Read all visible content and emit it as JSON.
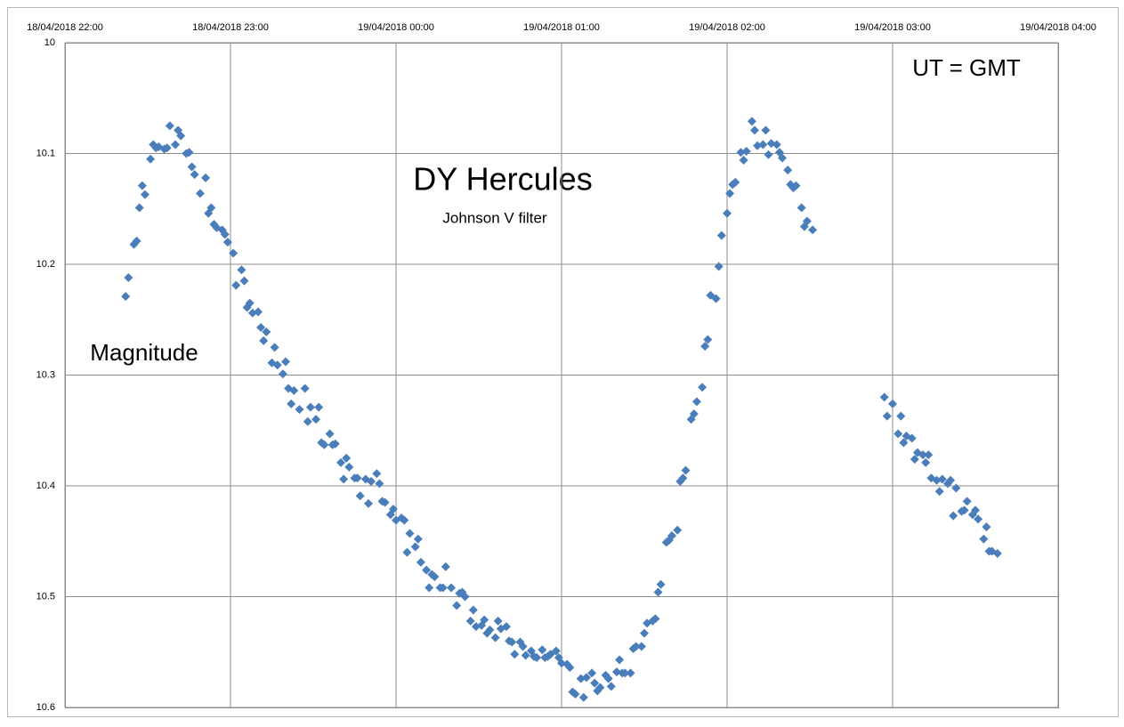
{
  "chart_data": {
    "type": "scatter",
    "title": "DY Hercules",
    "subtitle": "Johnson V filter",
    "y_label": "Magnitude",
    "annotation": "UT = GMT",
    "color": "#4a7ebb",
    "xlim": [
      "18/04/2018 22:00",
      "19/04/2018 04:00"
    ],
    "xticks": [
      "18/04/2018 22:00",
      "18/04/2018 23:00",
      "19/04/2018 00:00",
      "19/04/2018 01:00",
      "19/04/2018 02:00",
      "19/04/2018 03:00",
      "19/04/2018 04:00"
    ],
    "x_axis_position": "top",
    "ylim": [
      10,
      10.6
    ],
    "yticks": [
      10,
      10.1,
      10.2,
      10.3,
      10.4,
      10.5,
      10.6
    ],
    "y_inverted": true,
    "grid": true,
    "x": [
      "18/04/2018 22:22",
      "18/04/2018 22:23",
      "18/04/2018 22:25",
      "18/04/2018 22:26",
      "18/04/2018 22:27",
      "18/04/2018 22:28",
      "18/04/2018 22:29",
      "18/04/2018 22:31",
      "18/04/2018 22:32",
      "18/04/2018 22:33",
      "18/04/2018 22:34",
      "18/04/2018 22:36",
      "18/04/2018 22:37",
      "18/04/2018 22:38",
      "18/04/2018 22:40",
      "18/04/2018 22:41",
      "18/04/2018 22:42",
      "18/04/2018 22:44",
      "18/04/2018 22:45",
      "18/04/2018 22:46",
      "18/04/2018 22:47",
      "18/04/2018 22:49",
      "18/04/2018 22:51",
      "18/04/2018 22:52",
      "18/04/2018 22:53",
      "18/04/2018 22:54",
      "18/04/2018 22:55",
      "18/04/2018 22:57",
      "18/04/2018 22:58",
      "18/04/2018 22:59",
      "18/04/2018 23:01",
      "18/04/2018 23:02",
      "18/04/2018 23:04",
      "18/04/2018 23:05",
      "18/04/2018 23:06",
      "18/04/2018 23:07",
      "18/04/2018 23:08",
      "18/04/2018 23:10",
      "18/04/2018 23:11",
      "18/04/2018 23:12",
      "18/04/2018 23:13",
      "18/04/2018 23:15",
      "18/04/2018 23:16",
      "18/04/2018 23:17",
      "18/04/2018 23:19",
      "18/04/2018 23:20",
      "18/04/2018 23:21",
      "18/04/2018 23:22",
      "18/04/2018 23:23",
      "18/04/2018 23:25",
      "18/04/2018 23:27",
      "18/04/2018 23:28",
      "18/04/2018 23:29",
      "18/04/2018 23:31",
      "18/04/2018 23:32",
      "18/04/2018 23:33",
      "18/04/2018 23:34",
      "18/04/2018 23:36",
      "18/04/2018 23:37",
      "18/04/2018 23:38",
      "18/04/2018 23:40",
      "18/04/2018 23:41",
      "18/04/2018 23:42",
      "18/04/2018 23:43",
      "18/04/2018 23:45",
      "18/04/2018 23:46",
      "18/04/2018 23:47",
      "18/04/2018 23:49",
      "18/04/2018 23:50",
      "18/04/2018 23:51",
      "18/04/2018 23:53",
      "18/04/2018 23:54",
      "18/04/2018 23:55",
      "18/04/2018 23:56",
      "18/04/2018 23:58",
      "18/04/2018 23:59",
      "19/04/2018 00:00",
      "19/04/2018 00:02",
      "19/04/2018 00:03",
      "19/04/2018 00:04",
      "19/04/2018 00:05",
      "19/04/2018 00:07",
      "19/04/2018 00:08",
      "19/04/2018 00:09",
      "19/04/2018 00:11",
      "19/04/2018 00:12",
      "19/04/2018 00:13",
      "19/04/2018 00:14",
      "19/04/2018 00:16",
      "19/04/2018 00:17",
      "19/04/2018 00:18",
      "19/04/2018 00:20",
      "19/04/2018 00:22",
      "19/04/2018 00:23",
      "19/04/2018 00:24",
      "19/04/2018 00:25",
      "19/04/2018 00:27",
      "19/04/2018 00:28",
      "19/04/2018 00:29",
      "19/04/2018 00:31",
      "19/04/2018 00:32",
      "19/04/2018 00:33",
      "19/04/2018 00:34",
      "19/04/2018 00:36",
      "19/04/2018 00:37",
      "19/04/2018 00:38",
      "19/04/2018 00:40",
      "19/04/2018 00:41",
      "19/04/2018 00:42",
      "19/04/2018 00:43",
      "19/04/2018 00:45",
      "19/04/2018 00:46",
      "19/04/2018 00:47",
      "19/04/2018 00:49",
      "19/04/2018 00:50",
      "19/04/2018 00:51",
      "19/04/2018 00:53",
      "19/04/2018 00:54",
      "19/04/2018 00:55",
      "19/04/2018 00:56",
      "19/04/2018 00:58",
      "19/04/2018 00:59",
      "19/04/2018 01:00",
      "19/04/2018 01:02",
      "19/04/2018 01:03",
      "19/04/2018 01:04",
      "19/04/2018 01:05",
      "19/04/2018 01:07",
      "19/04/2018 01:08",
      "19/04/2018 01:09",
      "19/04/2018 01:11",
      "19/04/2018 01:12",
      "19/04/2018 01:13",
      "19/04/2018 01:14",
      "19/04/2018 01:16",
      "19/04/2018 01:17",
      "19/04/2018 01:18",
      "19/04/2018 01:20",
      "19/04/2018 01:21",
      "19/04/2018 01:22",
      "19/04/2018 01:23",
      "19/04/2018 01:25",
      "19/04/2018 01:26",
      "19/04/2018 01:27",
      "19/04/2018 01:29",
      "19/04/2018 01:30",
      "19/04/2018 01:31",
      "19/04/2018 01:33",
      "19/04/2018 01:34",
      "19/04/2018 01:35",
      "19/04/2018 01:36",
      "19/04/2018 01:38",
      "19/04/2018 01:39",
      "19/04/2018 01:40",
      "19/04/2018 01:42",
      "19/04/2018 01:43",
      "19/04/2018 01:44",
      "19/04/2018 01:45",
      "19/04/2018 01:47",
      "19/04/2018 01:48",
      "19/04/2018 01:49",
      "19/04/2018 01:51",
      "19/04/2018 01:52",
      "19/04/2018 01:53",
      "19/04/2018 01:54",
      "19/04/2018 01:56",
      "19/04/2018 01:57",
      "19/04/2018 01:58",
      "19/04/2018 02:00",
      "19/04/2018 02:01",
      "19/04/2018 02:02",
      "19/04/2018 02:03",
      "19/04/2018 02:05",
      "19/04/2018 02:06",
      "19/04/2018 02:07",
      "19/04/2018 02:09",
      "19/04/2018 02:10",
      "19/04/2018 02:11",
      "19/04/2018 02:13",
      "19/04/2018 02:14",
      "19/04/2018 02:15",
      "19/04/2018 02:16",
      "19/04/2018 02:18",
      "19/04/2018 02:19",
      "19/04/2018 02:20",
      "19/04/2018 02:22",
      "19/04/2018 02:23",
      "19/04/2018 02:24",
      "19/04/2018 02:25",
      "19/04/2018 02:27",
      "19/04/2018 02:28",
      "19/04/2018 02:29",
      "19/04/2018 02:31",
      "19/04/2018 02:57",
      "19/04/2018 02:58",
      "19/04/2018 03:00",
      "19/04/2018 03:02",
      "19/04/2018 03:03",
      "19/04/2018 03:04",
      "19/04/2018 03:05",
      "19/04/2018 03:07",
      "19/04/2018 03:08",
      "19/04/2018 03:09",
      "19/04/2018 03:11",
      "19/04/2018 03:12",
      "19/04/2018 03:13",
      "19/04/2018 03:14",
      "19/04/2018 03:16",
      "19/04/2018 03:17",
      "19/04/2018 03:18",
      "19/04/2018 03:20",
      "19/04/2018 03:21",
      "19/04/2018 03:22",
      "19/04/2018 03:23",
      "19/04/2018 03:25",
      "19/04/2018 03:26",
      "19/04/2018 03:27",
      "19/04/2018 03:29",
      "19/04/2018 03:30",
      "19/04/2018 03:31",
      "19/04/2018 03:33",
      "19/04/2018 03:34",
      "19/04/2018 03:35",
      "19/04/2018 03:36",
      "19/04/2018 03:38"
    ],
    "values": [
      10.229,
      10.212,
      10.182,
      10.179,
      10.149,
      10.129,
      10.137,
      10.105,
      10.092,
      10.095,
      10.094,
      10.096,
      10.095,
      10.075,
      10.092,
      10.079,
      10.084,
      10.1,
      10.099,
      10.112,
      10.119,
      10.136,
      10.122,
      10.154,
      10.149,
      10.164,
      10.167,
      10.169,
      10.173,
      10.18,
      10.19,
      10.219,
      10.205,
      10.215,
      10.239,
      10.235,
      10.244,
      10.243,
      10.257,
      10.269,
      10.261,
      10.289,
      10.275,
      10.291,
      10.299,
      10.288,
      10.312,
      10.326,
      10.314,
      10.331,
      10.312,
      10.342,
      10.329,
      10.34,
      10.329,
      10.361,
      10.363,
      10.353,
      10.363,
      10.362,
      10.379,
      10.394,
      10.375,
      10.383,
      10.393,
      10.393,
      10.409,
      10.394,
      10.416,
      10.396,
      10.389,
      10.398,
      10.414,
      10.415,
      10.426,
      10.421,
      10.431,
      10.429,
      10.431,
      10.46,
      10.443,
      10.455,
      10.448,
      10.469,
      10.476,
      10.492,
      10.48,
      10.482,
      10.492,
      10.492,
      10.473,
      10.492,
      10.508,
      10.497,
      10.496,
      10.5,
      10.522,
      10.512,
      10.527,
      10.526,
      10.521,
      10.533,
      10.53,
      10.537,
      10.522,
      10.529,
      10.527,
      10.54,
      10.541,
      10.552,
      10.541,
      10.545,
      10.553,
      10.549,
      10.554,
      10.555,
      10.548,
      10.555,
      10.554,
      10.552,
      10.549,
      10.555,
      10.56,
      10.561,
      10.564,
      10.586,
      10.588,
      10.574,
      10.591,
      10.573,
      10.569,
      10.578,
      10.585,
      10.582,
      10.571,
      10.574,
      10.581,
      10.568,
      10.557,
      10.569,
      10.569,
      10.569,
      10.547,
      10.545,
      10.545,
      10.533,
      10.524,
      10.522,
      10.52,
      10.496,
      10.489,
      10.451,
      10.449,
      10.445,
      10.44,
      10.396,
      10.393,
      10.386,
      10.34,
      10.335,
      10.324,
      10.311,
      10.274,
      10.268,
      10.228,
      10.231,
      10.202,
      10.174,
      10.154,
      10.136,
      10.128,
      10.126,
      10.099,
      10.106,
      10.098,
      10.071,
      10.079,
      10.093,
      10.092,
      10.079,
      10.101,
      10.091,
      10.092,
      10.099,
      10.104,
      10.115,
      10.128,
      10.131,
      10.129,
      10.149,
      10.166,
      10.161,
      10.169,
      10.32,
      10.337,
      10.326,
      10.353,
      10.337,
      10.361,
      10.355,
      10.357,
      10.376,
      10.37,
      10.372,
      10.379,
      10.372,
      10.393,
      10.395,
      10.405,
      10.394,
      10.398,
      10.395,
      10.427,
      10.402,
      10.423,
      10.422,
      10.414,
      10.426,
      10.422,
      10.43,
      10.448,
      10.437,
      10.459,
      10.459,
      10.461
    ]
  }
}
